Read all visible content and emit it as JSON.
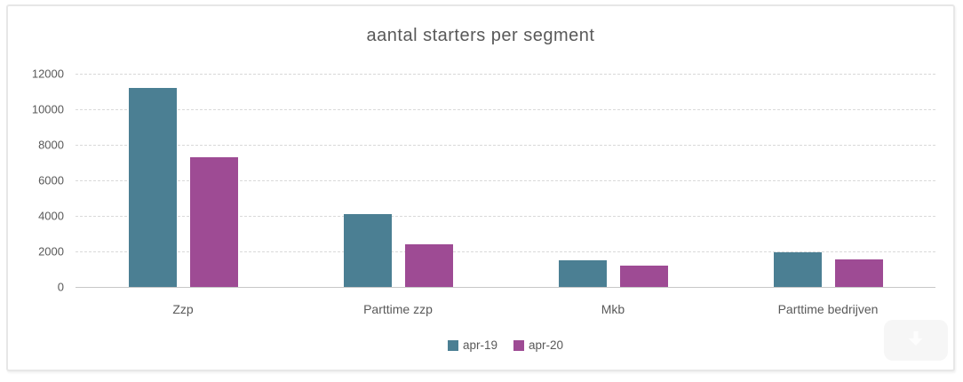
{
  "chart_data": {
    "type": "bar",
    "title": "aantal starters per segment",
    "categories": [
      "Zzp",
      "Parttime zzp",
      "Mkb",
      "Parttime bedrijven"
    ],
    "series": [
      {
        "name": "apr-19",
        "color": "#4B7F93",
        "values": [
          11200,
          4100,
          1500,
          1950
        ]
      },
      {
        "name": "apr-20",
        "color": "#9E4B94",
        "values": [
          7300,
          2400,
          1200,
          1550
        ]
      }
    ],
    "xlabel": "",
    "ylabel": "",
    "ylim": [
      0,
      12000
    ],
    "yticks": [
      0,
      2000,
      4000,
      6000,
      8000,
      10000,
      12000
    ],
    "grid": "horizontal-dashed",
    "legend_position": "bottom"
  },
  "colors": {
    "title_text": "#595959",
    "axis_text": "#595959",
    "gridline": "#d9d9d9",
    "zero_line": "#c8c8c8",
    "frame_border": "#e7e7e7"
  },
  "overlay": {
    "scroll_button_icon": "down-arrow-icon"
  }
}
